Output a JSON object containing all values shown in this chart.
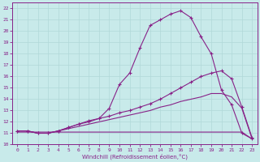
{
  "xlabel": "Windchill (Refroidissement éolien,°C)",
  "bg_color": "#c8eaea",
  "grid_color": "#b0d8d8",
  "line_color": "#882288",
  "xlim": [
    -0.5,
    23.5
  ],
  "ylim": [
    10.0,
    22.5
  ],
  "xticks": [
    0,
    1,
    2,
    3,
    4,
    5,
    6,
    7,
    8,
    9,
    10,
    11,
    12,
    13,
    14,
    15,
    16,
    17,
    18,
    19,
    20,
    21,
    22,
    23
  ],
  "yticks": [
    10,
    11,
    12,
    13,
    14,
    15,
    16,
    17,
    18,
    19,
    20,
    21,
    22
  ],
  "s1_x": [
    0,
    1,
    2,
    3,
    4,
    5,
    6,
    7,
    8,
    9,
    10,
    11,
    12,
    13,
    14,
    15,
    16,
    17,
    18,
    19,
    20,
    21,
    22,
    23
  ],
  "s1_y": [
    11.1,
    11.1,
    11.1,
    11.1,
    11.1,
    11.1,
    11.1,
    11.1,
    11.1,
    11.1,
    11.1,
    11.1,
    11.1,
    11.1,
    11.1,
    11.1,
    11.1,
    11.1,
    11.1,
    11.1,
    11.1,
    11.1,
    11.1,
    10.5
  ],
  "s2_x": [
    0,
    1,
    2,
    3,
    4,
    5,
    6,
    7,
    8,
    9,
    10,
    11,
    12,
    13,
    14,
    15,
    16,
    17,
    18,
    19,
    20,
    21,
    22,
    23
  ],
  "s2_y": [
    11.2,
    11.2,
    11.0,
    11.0,
    11.2,
    11.4,
    11.6,
    11.8,
    12.0,
    12.2,
    12.4,
    12.6,
    12.8,
    13.0,
    13.3,
    13.5,
    13.8,
    14.0,
    14.2,
    14.5,
    14.5,
    14.2,
    13.2,
    10.5
  ],
  "s3_x": [
    0,
    1,
    2,
    3,
    4,
    5,
    6,
    7,
    8,
    9,
    10,
    11,
    12,
    13,
    14,
    15,
    16,
    17,
    18,
    19,
    20,
    21,
    22,
    23
  ],
  "s3_y": [
    11.2,
    11.2,
    11.0,
    11.0,
    11.2,
    11.5,
    11.8,
    12.1,
    12.3,
    12.5,
    12.8,
    13.0,
    13.3,
    13.6,
    14.0,
    14.5,
    15.0,
    15.5,
    16.0,
    16.3,
    16.5,
    15.8,
    13.3,
    10.6
  ],
  "s4_x": [
    0,
    1,
    2,
    3,
    4,
    5,
    6,
    7,
    8,
    9,
    10,
    11,
    12,
    13,
    14,
    15,
    16,
    17,
    18,
    19,
    20,
    21,
    22,
    23
  ],
  "s4_y": [
    11.2,
    11.2,
    11.0,
    11.0,
    11.2,
    11.5,
    11.8,
    12.0,
    12.3,
    13.2,
    15.3,
    16.3,
    18.5,
    20.5,
    21.0,
    21.5,
    21.8,
    21.2,
    19.5,
    18.0,
    14.8,
    13.5,
    11.0,
    10.5
  ]
}
